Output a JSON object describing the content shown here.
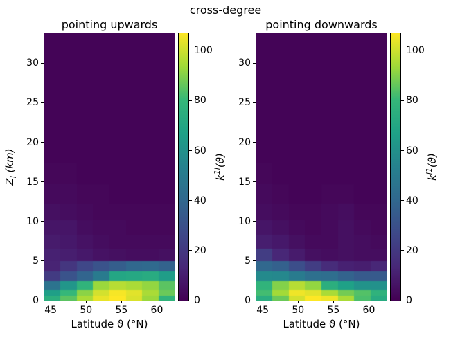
{
  "figure": {
    "background": "#ffffff",
    "text_color": "#000000"
  },
  "chart_data": {
    "type": "heatmap",
    "title": "cross-degree",
    "colormap": "viridis",
    "vmin": 0,
    "vmax": 107,
    "xlabel": "Latitude ϑ (°N)",
    "ylabel": {
      "base": "Z",
      "sub": "l",
      "rest": " (km)"
    },
    "xlim": [
      44.1,
      62.5
    ],
    "ylim": [
      0,
      33.8
    ],
    "x_ticks": [
      45,
      50,
      55,
      60
    ],
    "y_ticks": [
      0,
      5,
      10,
      15,
      20,
      25,
      30
    ],
    "colorbar_ticks": [
      0,
      20,
      40,
      60,
      80,
      100
    ],
    "grid": false,
    "x_edges": [
      44.1,
      46.4,
      48.7,
      51.0,
      53.3,
      55.6,
      57.9,
      60.2,
      62.5
    ],
    "y_edges": [
      0,
      0.65,
      1.3,
      2.45,
      3.7,
      5.0,
      6.55,
      8.3,
      10.2,
      12.3,
      14.7,
      17.4,
      20.4,
      24.0,
      28.6,
      33.8
    ],
    "rows_order": "bottom-to-top",
    "panels": [
      {
        "title": "pointing upwards",
        "colorbar_label": {
          "base": "k",
          "sup": "1l",
          "rest": "(ϑ)"
        },
        "values": [
          [
            75,
            85,
            95,
            104,
            107,
            102,
            93,
            78
          ],
          [
            66,
            80,
            91,
            101,
            106,
            103,
            95,
            87
          ],
          [
            46,
            62,
            78,
            93,
            97,
            95,
            92,
            85
          ],
          [
            21,
            31,
            39,
            50,
            70,
            71,
            73,
            65
          ],
          [
            12,
            19,
            26,
            31,
            36,
            40,
            41,
            38
          ],
          [
            11,
            10,
            8,
            6,
            5,
            4,
            4,
            5
          ],
          [
            9,
            8,
            6,
            4,
            3,
            3,
            3,
            3
          ],
          [
            7,
            7,
            4,
            3,
            3,
            2,
            2,
            2
          ],
          [
            5,
            4,
            3,
            2,
            2,
            2,
            2,
            2
          ],
          [
            3,
            3,
            2,
            2,
            1,
            1,
            1,
            1
          ],
          [
            2,
            2,
            1,
            1,
            1,
            1,
            1,
            1
          ],
          [
            1,
            1,
            1,
            1,
            1,
            1,
            1,
            1
          ],
          [
            1,
            1,
            1,
            1,
            1,
            1,
            1,
            1
          ],
          [
            1,
            1,
            1,
            1,
            1,
            1,
            1,
            1
          ],
          [
            1,
            1,
            1,
            1,
            1,
            1,
            1,
            1
          ]
        ]
      },
      {
        "title": "pointing downwards",
        "colorbar_label": {
          "base": "k",
          "sup": "l1",
          "rest": "(ϑ)"
        },
        "values": [
          [
            74,
            87,
            101,
            107,
            105,
            95,
            83,
            73
          ],
          [
            82,
            94,
            105,
            103,
            95,
            88,
            84,
            77
          ],
          [
            78,
            90,
            97,
            92,
            75,
            67,
            61,
            60
          ],
          [
            57,
            56,
            50,
            44,
            43,
            38,
            34,
            34
          ],
          [
            40,
            37,
            29,
            22,
            15,
            11,
            10,
            13
          ],
          [
            22,
            13,
            9,
            5,
            4,
            5,
            4,
            4
          ],
          [
            10,
            8,
            5,
            3,
            3,
            5,
            4,
            3
          ],
          [
            7,
            5,
            3,
            2,
            3,
            5,
            3,
            2
          ],
          [
            4,
            3,
            2,
            2,
            3,
            4,
            2,
            2
          ],
          [
            3,
            2,
            1,
            1,
            2,
            2,
            1,
            1
          ],
          [
            2,
            1,
            1,
            1,
            1,
            1,
            1,
            1
          ],
          [
            1,
            1,
            1,
            1,
            1,
            1,
            1,
            1
          ],
          [
            1,
            1,
            1,
            1,
            1,
            1,
            1,
            1
          ],
          [
            1,
            1,
            1,
            1,
            1,
            1,
            1,
            1
          ],
          [
            1,
            1,
            1,
            1,
            1,
            1,
            1,
            1
          ]
        ]
      }
    ],
    "viridis_stops": [
      "#440154",
      "#482878",
      "#3e4989",
      "#31688e",
      "#26828e",
      "#1fa187",
      "#35b779",
      "#a0da39",
      "#fde725"
    ]
  }
}
